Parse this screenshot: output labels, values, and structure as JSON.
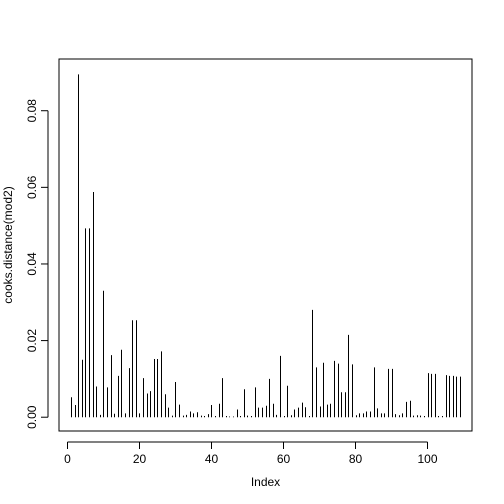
{
  "chart_data": {
    "type": "bar",
    "xlabel": "Index",
    "ylabel": "cooks.distance(mod2)",
    "xlim": [
      -2.36,
      112.36
    ],
    "ylim": [
      -0.0036,
      0.0935
    ],
    "x_ticks": [
      0,
      20,
      40,
      60,
      80,
      100
    ],
    "x_tick_labels": [
      "0",
      "20",
      "40",
      "60",
      "80",
      "100"
    ],
    "y_ticks": [
      0.0,
      0.02,
      0.04,
      0.06,
      0.08
    ],
    "y_tick_labels": [
      "0.00",
      "0.02",
      "0.04",
      "0.06",
      "0.08"
    ],
    "grid": false,
    "legend": "none",
    "x": [
      1,
      2,
      3,
      4,
      5,
      6,
      7,
      8,
      9,
      10,
      11,
      12,
      13,
      14,
      15,
      16,
      17,
      18,
      19,
      20,
      21,
      22,
      23,
      24,
      25,
      26,
      27,
      28,
      29,
      30,
      31,
      32,
      33,
      34,
      35,
      36,
      37,
      38,
      39,
      40,
      41,
      42,
      43,
      44,
      45,
      46,
      47,
      48,
      49,
      50,
      51,
      52,
      53,
      54,
      55,
      56,
      57,
      58,
      59,
      60,
      61,
      62,
      63,
      64,
      65,
      66,
      67,
      68,
      69,
      70,
      71,
      72,
      73,
      74,
      75,
      76,
      77,
      78,
      79,
      80,
      81,
      82,
      83,
      84,
      85,
      86,
      87,
      88,
      89,
      90,
      91,
      92,
      93,
      94,
      95,
      96,
      97,
      98,
      99,
      100,
      101,
      102,
      103,
      104,
      105,
      106,
      107,
      108,
      109
    ],
    "values": [
      0.0052,
      0.0032,
      0.0895,
      0.015,
      0.0493,
      0.0493,
      0.0588,
      0.008,
      0.0006,
      0.033,
      0.0078,
      0.0162,
      0.0009,
      0.0108,
      0.0176,
      0.001,
      0.0128,
      0.0253,
      0.0253,
      0.001,
      0.0102,
      0.0062,
      0.0068,
      0.0152,
      0.0152,
      0.0172,
      0.006,
      0.0025,
      0.0004,
      0.0092,
      0.0033,
      0.0004,
      0.0006,
      0.0015,
      0.001,
      0.0013,
      0.0004,
      0.0003,
      0.0008,
      0.0032,
      0.0003,
      0.0035,
      0.0102,
      0.0003,
      0.0002,
      0.0002,
      0.002,
      0.0003,
      0.0073,
      0.0004,
      0.0003,
      0.0078,
      0.0025,
      0.0025,
      0.003,
      0.01,
      0.0035,
      0.0006,
      0.016,
      0.0003,
      0.0082,
      0.0005,
      0.002,
      0.0025,
      0.0038,
      0.0026,
      0.0003,
      0.028,
      0.013,
      0.0028,
      0.0142,
      0.0033,
      0.0035,
      0.0147,
      0.014,
      0.0065,
      0.0065,
      0.0215,
      0.0138,
      0.0005,
      0.001,
      0.001,
      0.0015,
      0.0015,
      0.013,
      0.0023,
      0.001,
      0.001,
      0.0126,
      0.0126,
      0.0008,
      0.0005,
      0.001,
      0.004,
      0.0043,
      0.0004,
      0.0005,
      0.0004,
      0.0003,
      0.0115,
      0.0113,
      0.0113,
      0.0003,
      0.0003,
      0.011,
      0.0108,
      0.0108,
      0.0106,
      0.0106
    ]
  }
}
